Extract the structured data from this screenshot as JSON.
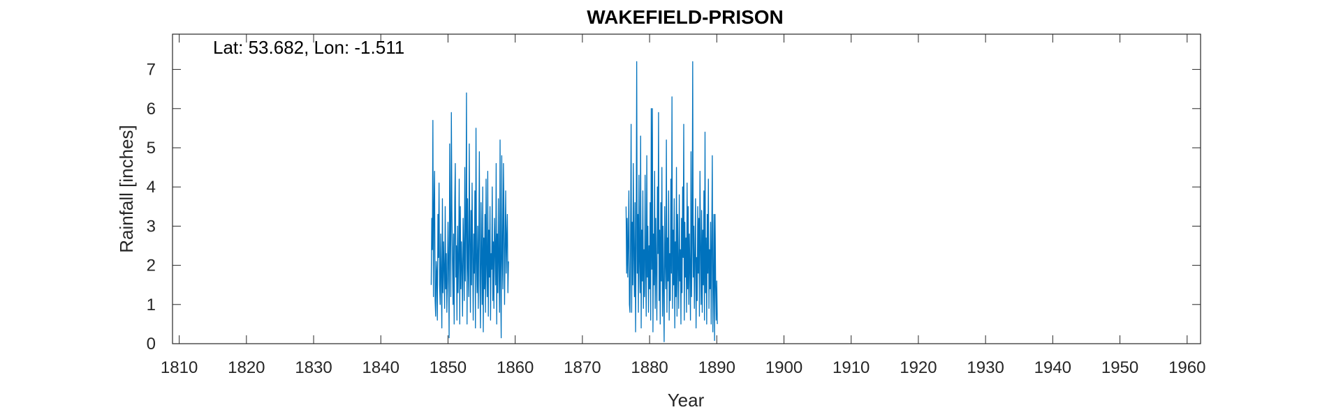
{
  "chart_data": {
    "type": "line",
    "title": "WAKEFIELD-PRISON",
    "xlabel": "Year",
    "ylabel": "Rainfall [inches]",
    "annotation": "Lat: 53.682, Lon: -1.511",
    "xlim": [
      1809,
      1962
    ],
    "ylim": [
      0,
      7.9
    ],
    "xticks": [
      1810,
      1820,
      1830,
      1840,
      1850,
      1860,
      1870,
      1880,
      1890,
      1900,
      1910,
      1920,
      1930,
      1940,
      1950,
      1960
    ],
    "yticks": [
      0,
      1,
      2,
      3,
      4,
      5,
      6,
      7
    ],
    "grid": false,
    "line_color": "#0072BD",
    "series": [
      {
        "segments": [
          {
            "start": 1847.5,
            "step_years": 0.0833333,
            "values": [
              1.5,
              3.2,
              2.4,
              5.7,
              1.2,
              3.5,
              4.4,
              1.1,
              0.7,
              2.1,
              1.8,
              0.6,
              3.3,
              2.2,
              4.1,
              1.5,
              1.0,
              2.8,
              1.7,
              0.4,
              3.7,
              1.3,
              2.6,
              1.9,
              0.9,
              3.5,
              1.4,
              2.3,
              0.8,
              1.6,
              3.1,
              2.0,
              0.15,
              5.1,
              2.7,
              1.2,
              5.9,
              3.4,
              2.1,
              1.0,
              2.8,
              0.5,
              3.6,
              4.6,
              1.7,
              2.5,
              0.6,
              3.0,
              1.3,
              2.2,
              4.2,
              0.5,
              3.5,
              1.4,
              2.6,
              1.9,
              0.7,
              3.2,
              2.4,
              1.1,
              4.5,
              1.6,
              2.9,
              6.4,
              0.5,
              3.7,
              2.0,
              1.2,
              5.1,
              2.6,
              0.8,
              3.4,
              1.5,
              4.1,
              2.3,
              0.6,
              2.8,
              1.8,
              3.9,
              0.4,
              5.5,
              2.1,
              1.3,
              3.0,
              0.9,
              2.5,
              4.9,
              1.6,
              0.4,
              3.6,
              2.2,
              1.0,
              4.0,
              0.3,
              2.7,
              1.4,
              3.3,
              0.8,
              4.2,
              2.0,
              1.2,
              4.4,
              0.7,
              2.9,
              1.7,
              3.5,
              0.6,
              2.3,
              1.9,
              4.0,
              1.1,
              2.6,
              0.9,
              3.2,
              2.4,
              1.5,
              4.6,
              0.5,
              2.8,
              1.3,
              3.7,
              2.0,
              0.8,
              5.2,
              1.6,
              0.15,
              4.8,
              2.2,
              1.4,
              4.6,
              3.3,
              1.0,
              2.5,
              3.9,
              1.8,
              2.7,
              3.3,
              1.3,
              2.1
            ]
          },
          {
            "start": 1876.5,
            "step_years": 0.0833333,
            "values": [
              3.5,
              1.8,
              3.2,
              1.7,
              2.6,
              3.9,
              1.0,
              0.8,
              2.7,
              5.6,
              0.8,
              3.1,
              1.5,
              4.6,
              2.2,
              1.2,
              3.6,
              0.3,
              2.5,
              7.2,
              1.8,
              3.3,
              0.8,
              4.3,
              2.1,
              1.3,
              5.3,
              0.4,
              2.9,
              1.6,
              3.9,
              0.9,
              2.4,
              1.2,
              4.3,
              2.0,
              0.7,
              4.8,
              1.7,
              3.0,
              0.8,
              2.5,
              1.4,
              3.6,
              0.6,
              6.0,
              1.9,
              6.0,
              0.3,
              2.8,
              1.5,
              4.4,
              0.9,
              3.2,
              1.8,
              0.6,
              4.0,
              2.3,
              5.9,
              1.1,
              2.9,
              0.5,
              3.6,
              1.6,
              4.5,
              0.7,
              3.0,
              1.3,
              0.05,
              3.5,
              2.1,
              1.4,
              5.2,
              0.8,
              2.7,
              1.6,
              3.9,
              0.6,
              2.3,
              1.1,
              4.2,
              1.8,
              6.3,
              0.9,
              2.9,
              1.5,
              3.7,
              0.4,
              2.6,
              1.2,
              4.5,
              0.7,
              3.3,
              2.0,
              0.9,
              3.8,
              1.6,
              2.4,
              0.5,
              3.2,
              1.3,
              4.0,
              2.2,
              5.6,
              0.6,
              3.1,
              1.7,
              2.7,
              0.8,
              4.1,
              1.4,
              3.5,
              1.0,
              2.8,
              1.9,
              0.6,
              4.9,
              1.2,
              2.6,
              7.2,
              1.7,
              3.0,
              0.9,
              2.3,
              3.7,
              0.4,
              2.2,
              1.1,
              3.5,
              1.8,
              3.2,
              0.7,
              4.4,
              2.5,
              1.0,
              3.4,
              0.8,
              2.9,
              1.5,
              3.9,
              0.6,
              5.4,
              1.3,
              2.7,
              0.5,
              3.3,
              1.8,
              4.2,
              0.9,
              2.4,
              1.4,
              3.1,
              0.5,
              2.6,
              4.8,
              0.3,
              1.5,
              3.3,
              0.08,
              3.3,
              1.5,
              0.6,
              1.6,
              0.5
            ]
          }
        ]
      }
    ]
  }
}
